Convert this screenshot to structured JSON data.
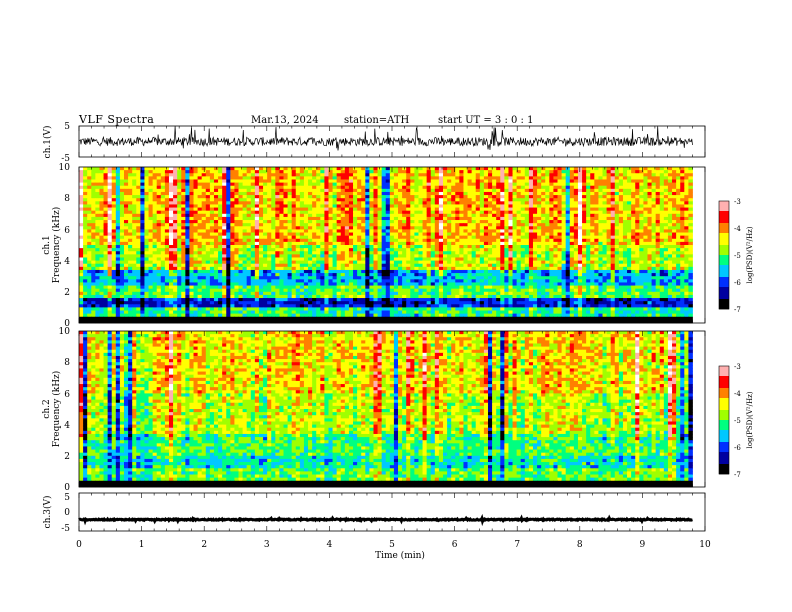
{
  "header": {
    "title": "VLF  Spectra",
    "date": "Mar.13, 2024",
    "station": "station=ATH",
    "start": "start  UT  =    3  : 0   : 1"
  },
  "colors": {
    "axis": "#000000",
    "background": "#ffffff",
    "colormap": [
      "#000000",
      "#0000a0",
      "#0030ff",
      "#00c8ff",
      "#00ff80",
      "#a0ff00",
      "#ffff00",
      "#ff8000",
      "#ff0000",
      "#ffb0b0",
      "#ffffff"
    ]
  },
  "chart_data": [
    {
      "type": "line",
      "panel": "ch1-waveform",
      "ylabel": "ch.1(V)",
      "ylim": [
        -5,
        5
      ],
      "yticks": [
        "5",
        "-5"
      ],
      "xlim": [
        0,
        10
      ],
      "series": [
        {
          "values_desc": "noisy waveform centred near 0 V with spikes up to about +5 V and down to about -3 V",
          "mean": 0,
          "range": [
            -3,
            5
          ]
        }
      ],
      "color": "#000000"
    },
    {
      "type": "heatmap",
      "panel": "ch1-spectrogram",
      "ylabel": "ch.1\nFrequency  (kHz)",
      "ylabel_lines": [
        "ch.1",
        "Frequency  (kHz)"
      ],
      "ylim": [
        0,
        10
      ],
      "yticks": [
        "0",
        "2",
        "4",
        "6",
        "8",
        "10"
      ],
      "xlim": [
        0,
        9.8
      ],
      "value_range": [
        -7,
        -3
      ],
      "colorbar_label": "log(PSD)(V²/Hz)",
      "colorbar_ticks": [
        "-3",
        "-4",
        "-5",
        "-6",
        "-7"
      ],
      "bands": [
        {
          "f_low": 0,
          "f_high": 0.4,
          "level": -7
        },
        {
          "f_low": 0.4,
          "f_high": 1.0,
          "level": -5.2
        },
        {
          "f_low": 1.0,
          "f_high": 1.7,
          "level": -6.2
        },
        {
          "f_low": 1.7,
          "f_high": 2.4,
          "level": -5.0
        },
        {
          "f_low": 2.4,
          "f_high": 3.5,
          "level": -5.6
        },
        {
          "f_low": 3.5,
          "f_high": 5.0,
          "level": -4.6
        },
        {
          "f_low": 5.0,
          "f_high": 10,
          "level": -4.2
        }
      ]
    },
    {
      "type": "heatmap",
      "panel": "ch2-spectrogram",
      "ylabel": "ch.2\nFrequency  (kHz)",
      "ylabel_lines": [
        "ch.2",
        "Frequency  (kHz)"
      ],
      "ylim": [
        0,
        10
      ],
      "yticks": [
        "0",
        "2",
        "4",
        "6",
        "8",
        "10"
      ],
      "xlim": [
        0,
        9.8
      ],
      "value_range": [
        -7,
        -3
      ],
      "colorbar_label": "log(PSD)(V²/Hz)",
      "colorbar_ticks": [
        "-3",
        "-4",
        "-5",
        "-6",
        "-7"
      ],
      "bands": [
        {
          "f_low": 0,
          "f_high": 0.3,
          "level": -7
        },
        {
          "f_low": 0.3,
          "f_high": 1.2,
          "level": -5.0
        },
        {
          "f_low": 1.2,
          "f_high": 2.0,
          "level": -5.4
        },
        {
          "f_low": 2.0,
          "f_high": 3.5,
          "level": -5.1
        },
        {
          "f_low": 3.5,
          "f_high": 6.0,
          "level": -4.7
        },
        {
          "f_low": 6.0,
          "f_high": 10,
          "level": -4.4
        }
      ]
    },
    {
      "type": "line",
      "panel": "ch3-waveform",
      "ylabel": "ch.3(V)",
      "ylim": [
        -5,
        5
      ],
      "yticks": [
        "5",
        "0",
        "-5"
      ],
      "xlim": [
        0,
        10
      ],
      "xlabel": "Time  (min)",
      "xticks": [
        "0",
        "1",
        "2",
        "3",
        "4",
        "5",
        "6",
        "7",
        "8",
        "9",
        "10"
      ],
      "series": [
        {
          "values_desc": "flat thick trace at about -2 V",
          "mean": -2,
          "range": [
            -2.4,
            -1.6
          ]
        }
      ],
      "color": "#000000"
    }
  ]
}
